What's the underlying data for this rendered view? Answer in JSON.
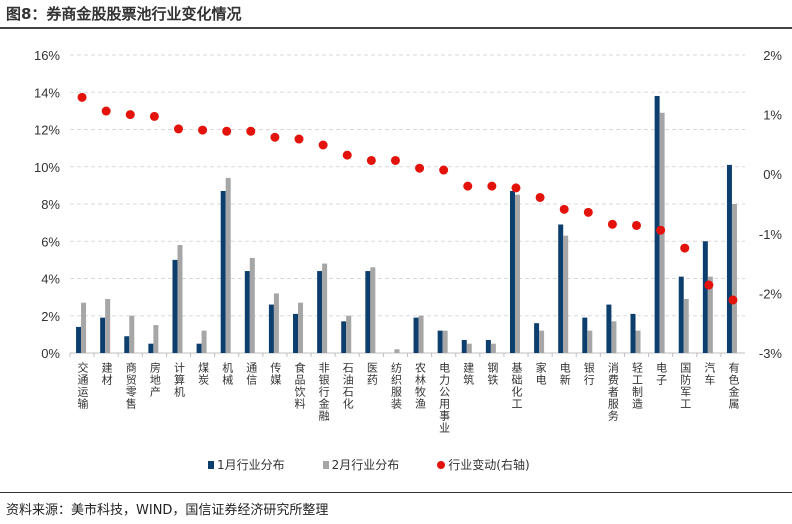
{
  "title": "图8：券商金股股票池行业变化情况",
  "source": "资料来源：美市科技，WIND，国信证券经济研究所整理",
  "chart_data": {
    "type": "bar",
    "categories": [
      "交通运输",
      "建材",
      "商贸零售",
      "房地产",
      "计算机",
      "煤炭",
      "机械",
      "通信",
      "传媒",
      "食品饮料",
      "非银行金融",
      "石油石化",
      "医药",
      "纺织服装",
      "农林牧渔",
      "电力公用事业",
      "建筑",
      "钢铁",
      "基础化工",
      "家电",
      "电新",
      "银行",
      "消费者服务",
      "轻工制造",
      "电子",
      "国防军工",
      "汽车",
      "有色金属"
    ],
    "series": [
      {
        "name": "1月行业分布",
        "type": "bar",
        "axis": "left",
        "color": "#0d3f6e",
        "values": [
          1.4,
          1.9,
          0.9,
          0.5,
          5.0,
          0.5,
          8.7,
          4.4,
          2.6,
          2.1,
          4.4,
          1.7,
          4.4,
          0,
          1.9,
          1.2,
          0.7,
          0.7,
          8.7,
          1.6,
          6.9,
          1.9,
          2.6,
          2.1,
          13.8,
          4.1,
          6.0,
          10.1
        ]
      },
      {
        "name": "2月行业分布",
        "type": "bar",
        "axis": "left",
        "color": "#a6a6a6",
        "values": [
          2.7,
          2.9,
          2.0,
          1.5,
          5.8,
          1.2,
          9.4,
          5.1,
          3.2,
          2.7,
          4.8,
          2.0,
          4.6,
          0.2,
          2.0,
          1.2,
          0.5,
          0.5,
          8.5,
          1.2,
          6.3,
          1.2,
          1.7,
          1.2,
          12.9,
          2.9,
          4.1,
          8.0
        ]
      },
      {
        "name": "行业变动(右轴)",
        "type": "scatter",
        "axis": "right",
        "color": "#e3120b",
        "values": [
          1.29,
          1.06,
          1.0,
          0.97,
          0.76,
          0.74,
          0.72,
          0.72,
          0.62,
          0.59,
          0.49,
          0.32,
          0.23,
          0.23,
          0.1,
          0.07,
          -0.2,
          -0.2,
          -0.23,
          -0.39,
          -0.59,
          -0.64,
          -0.84,
          -0.86,
          -0.94,
          -1.24,
          -1.86,
          -2.11
        ]
      }
    ],
    "left_axis": {
      "ylim": [
        0,
        16
      ],
      "ticks": [
        "0%",
        "2%",
        "4%",
        "6%",
        "8%",
        "10%",
        "12%",
        "14%",
        "16%"
      ]
    },
    "right_axis": {
      "ylim": [
        -3,
        2
      ],
      "ticks": [
        "-3%",
        "-2%",
        "-1%",
        "0%",
        "1%",
        "2%"
      ]
    },
    "grid": true,
    "legend": "bottom"
  }
}
